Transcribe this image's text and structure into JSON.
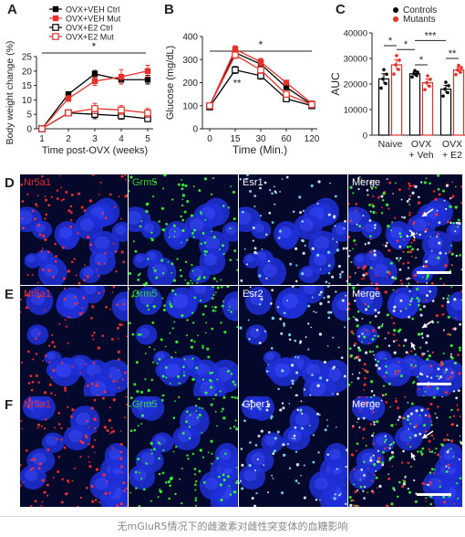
{
  "panels": {
    "A": "A",
    "B": "B",
    "C": "C",
    "D": "D",
    "E": "E",
    "F": "F"
  },
  "chart_data": [
    {
      "type": "line",
      "ylabel": "Body weight change (%)",
      "xlabel": "Time post-OVX (weeks)",
      "x": [
        1,
        2,
        3,
        4,
        5
      ],
      "ylim": [
        0,
        25
      ],
      "yticks": [
        "0",
        "5",
        "10",
        "15",
        "20",
        "25"
      ],
      "xticks": [
        "1",
        "2",
        "3",
        "4",
        "5"
      ],
      "significance": "*",
      "series": [
        {
          "name": "OVX+VEH Ctrl",
          "color": "#000000",
          "marker": "square-filled",
          "values": [
            0,
            12,
            19,
            17,
            17
          ],
          "err": [
            0.3,
            0.8,
            1.2,
            1.5,
            1.5
          ]
        },
        {
          "name": "OVX+VEH Mut",
          "color": "#e8302a",
          "marker": "square-filled",
          "values": [
            0,
            10.5,
            16.5,
            18,
            20
          ],
          "err": [
            0.3,
            1.0,
            1.5,
            2.5,
            2.0
          ]
        },
        {
          "name": "OVX+E2 Ctrl",
          "color": "#000000",
          "marker": "square-open",
          "values": [
            0,
            5.5,
            5,
            4.5,
            3.5
          ],
          "err": [
            0.3,
            1.0,
            1.5,
            1.2,
            1.0
          ]
        },
        {
          "name": "OVX+E2 Mut",
          "color": "#e8302a",
          "marker": "square-open",
          "values": [
            0,
            5.5,
            7,
            6.5,
            5.5
          ],
          "err": [
            0.3,
            1.0,
            1.8,
            1.5,
            1.5
          ]
        }
      ]
    },
    {
      "type": "line",
      "ylabel": "Glucose (mg/dL)",
      "xlabel": "Time (Min.)",
      "x": [
        0,
        15,
        30,
        60,
        120
      ],
      "xticks": [
        "0",
        "15",
        "30",
        "60",
        "120"
      ],
      "ylim": [
        0,
        400
      ],
      "yticks": [
        "0",
        "100",
        "200",
        "300",
        "400"
      ],
      "significance": "*",
      "annotation": "**",
      "series": [
        {
          "name": "OVX+VEH Ctrl",
          "color": "#000000",
          "marker": "square-filled",
          "values": [
            100,
            330,
            280,
            180,
            105
          ],
          "err": [
            5,
            15,
            15,
            10,
            5
          ]
        },
        {
          "name": "OVX+VEH Mut",
          "color": "#e8302a",
          "marker": "square-filled",
          "values": [
            100,
            345,
            290,
            200,
            110
          ],
          "err": [
            5,
            15,
            15,
            10,
            5
          ]
        },
        {
          "name": "OVX+E2 Ctrl",
          "color": "#000000",
          "marker": "square-open",
          "values": [
            95,
            255,
            230,
            130,
            100
          ],
          "err": [
            5,
            15,
            15,
            10,
            5
          ]
        },
        {
          "name": "OVX+E2 Mut",
          "color": "#e8302a",
          "marker": "square-open",
          "values": [
            100,
            320,
            255,
            150,
            105
          ],
          "err": [
            5,
            15,
            15,
            10,
            5
          ]
        }
      ]
    },
    {
      "type": "bar",
      "ylabel": "AUC",
      "categories": [
        "Naive",
        "OVX\n+ Veh",
        "OVX\n+ E2"
      ],
      "category_lines": [
        [
          "Naive"
        ],
        [
          "OVX",
          "+ Veh"
        ],
        [
          "OVX",
          "+ E2"
        ]
      ],
      "ylim": [
        0,
        40000
      ],
      "yticks": [
        "0",
        "10000",
        "20000",
        "30000",
        "40000"
      ],
      "legend": [
        "Controls",
        "Mutants"
      ],
      "series": [
        {
          "name": "Controls",
          "color": "#000000",
          "values": [
            22000,
            24000,
            18000
          ],
          "err": [
            2000,
            700,
            1500
          ]
        },
        {
          "name": "Mutants",
          "color": "#e8302a",
          "values": [
            27500,
            20500,
            25500
          ],
          "err": [
            2000,
            1500,
            1000
          ]
        }
      ],
      "significance": [
        {
          "label": "*",
          "from": 0,
          "to": 1,
          "level": 35000
        },
        {
          "label": "*",
          "from": 1,
          "to": 2,
          "level": 33500
        },
        {
          "label": "***",
          "from": 2,
          "to": 4,
          "level": 37000
        },
        {
          "label": "*",
          "from": 2,
          "to": 3,
          "level": 27500
        },
        {
          "label": "**",
          "from": 4,
          "to": 5,
          "level": 30000
        }
      ]
    }
  ],
  "micrographs": {
    "rows": [
      {
        "letter": "D",
        "labels": [
          "Nr5a1",
          "Grm5",
          "Esr1",
          "Merge"
        ]
      },
      {
        "letter": "E",
        "labels": [
          "Nr5a1",
          "Grm5",
          "Esr2",
          "Merge"
        ]
      },
      {
        "letter": "F",
        "labels": [
          "Nr5a1",
          "Grm5",
          "Gper1",
          "Merge"
        ]
      }
    ],
    "label_colors": [
      "#e8302a",
      "#2fd12f",
      "#ffffff",
      "#ffffff"
    ]
  },
  "caption": "无mGluR5情况下的雌激素对雌性突变体的血糖影响"
}
